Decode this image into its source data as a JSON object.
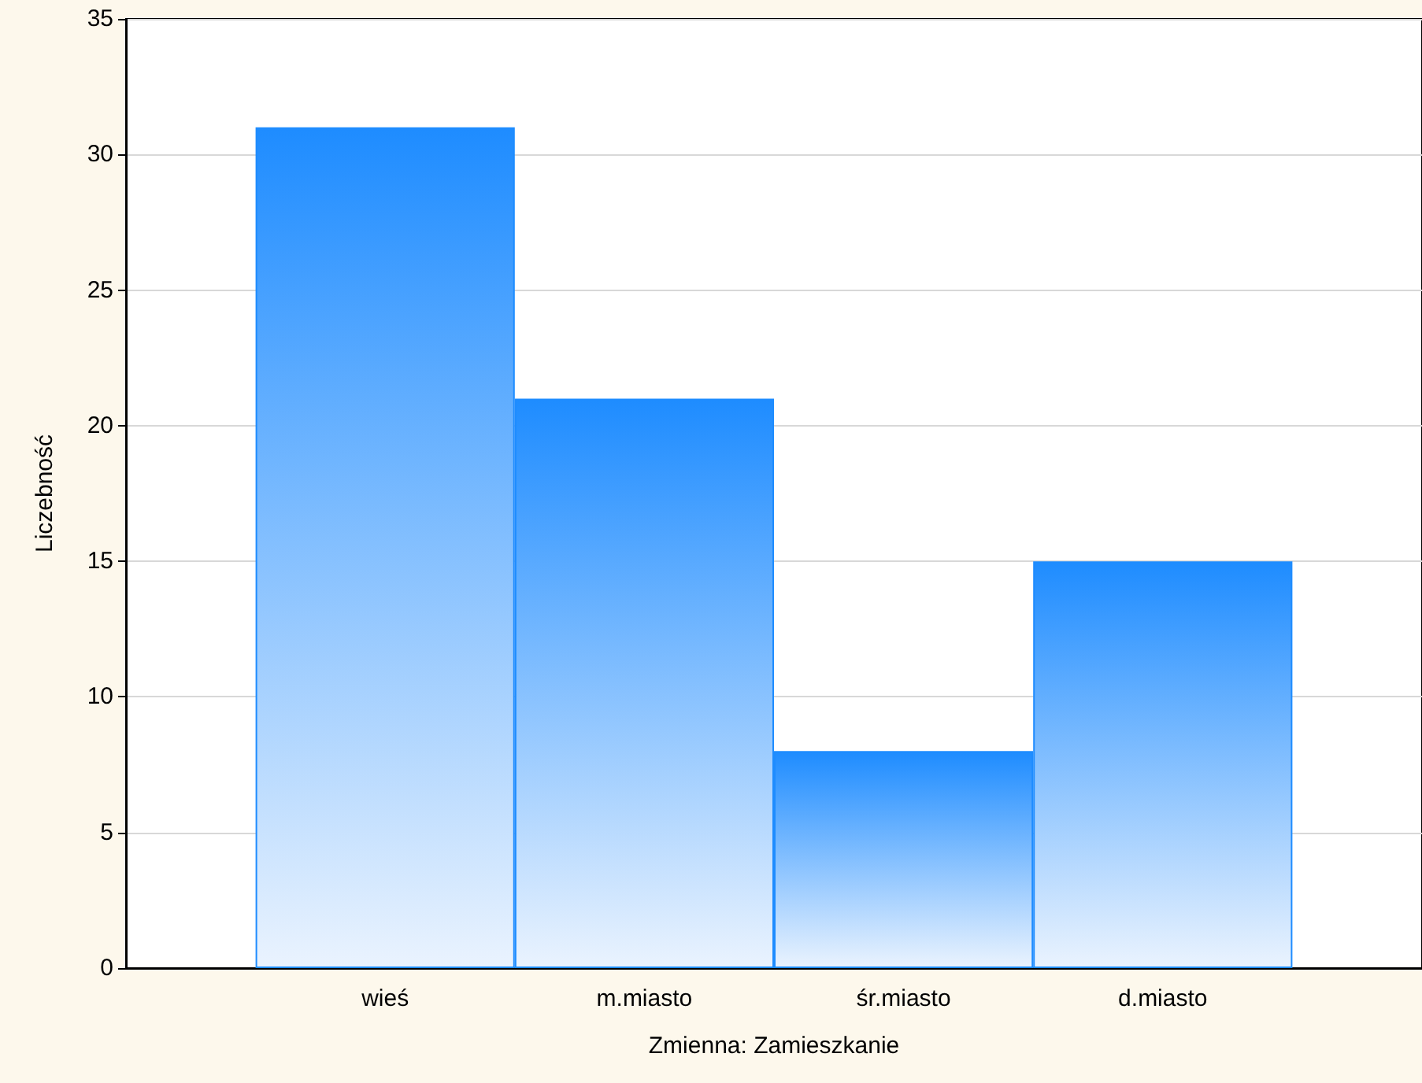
{
  "chart_data": {
    "type": "bar",
    "xlabel": "Zmienna: Zamieszkanie",
    "ylabel": "Liczebność",
    "categories": [
      "wieś",
      "m.miasto",
      "śr.miasto",
      "d.miasto"
    ],
    "values": [
      31,
      21,
      8,
      15
    ],
    "color": "#1e8cff",
    "ylim": [
      0,
      35
    ],
    "yticks": [
      0,
      5,
      10,
      15,
      20,
      25,
      30,
      35
    ],
    "grid": "y"
  }
}
